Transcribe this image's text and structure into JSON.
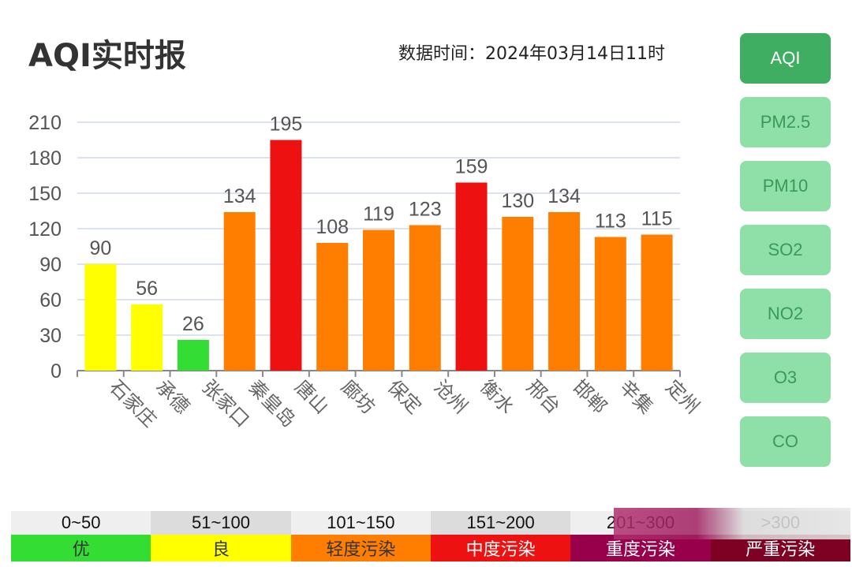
{
  "header": {
    "title": "AQI实时报",
    "data_time": "数据时间：2024年03月14日11时"
  },
  "sidebar": {
    "items": [
      {
        "label": "AQI",
        "active": true
      },
      {
        "label": "PM2.5"
      },
      {
        "label": "PM10"
      },
      {
        "label": "SO2"
      },
      {
        "label": "NO2"
      },
      {
        "label": "O3"
      },
      {
        "label": "CO"
      }
    ]
  },
  "chart_data": {
    "type": "bar",
    "categories": [
      "石家庄",
      "承德",
      "张家口",
      "秦皇岛",
      "唐山",
      "廊坊",
      "保定",
      "沧州",
      "衡水",
      "邢台",
      "邯郸",
      "辛集",
      "定州"
    ],
    "values": [
      90,
      56,
      26,
      134,
      195,
      108,
      119,
      123,
      159,
      130,
      134,
      113,
      115
    ],
    "ylim": [
      0,
      210
    ],
    "yticks": [
      0,
      30,
      60,
      90,
      120,
      150,
      180,
      210
    ],
    "grid": true,
    "colors": {
      "good_0_50": "#33dd33",
      "moderate_51_100": "#ffff00",
      "light_101_150": "#ff7e00",
      "medium_151_200": "#ee1111"
    }
  },
  "legend": [
    {
      "range": "0~50",
      "label": "优",
      "color": "#33dd33",
      "text": "#333333"
    },
    {
      "range": "51~100",
      "label": "良",
      "color": "#ffff00",
      "text": "#333333"
    },
    {
      "range": "101~150",
      "label": "轻度污染",
      "color": "#ff7e00",
      "text": "#333333"
    },
    {
      "range": "151~200",
      "label": "中度污染",
      "color": "#ee1111",
      "text": "#ffffff"
    },
    {
      "range": "201~300",
      "label": "重度污染",
      "color": "#99004c",
      "text": "#ffffff"
    },
    {
      "range": ">300",
      "label": "严重污染",
      "color": "#7e0023",
      "text": "#ffffff"
    }
  ]
}
